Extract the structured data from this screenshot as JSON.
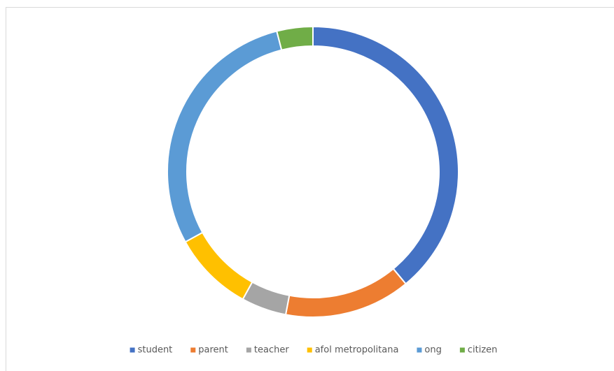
{
  "chart_data": {
    "type": "donut",
    "categories": [
      "student",
      "parent",
      "teacher",
      "afol metropolitana",
      "ong",
      "citizen"
    ],
    "values": [
      39,
      14,
      5,
      9,
      29,
      4
    ],
    "colors": [
      "#4472c4",
      "#ed7d31",
      "#a5a5a5",
      "#ffc000",
      "#5b9bd5",
      "#70ad47"
    ],
    "legend": "bottom"
  }
}
